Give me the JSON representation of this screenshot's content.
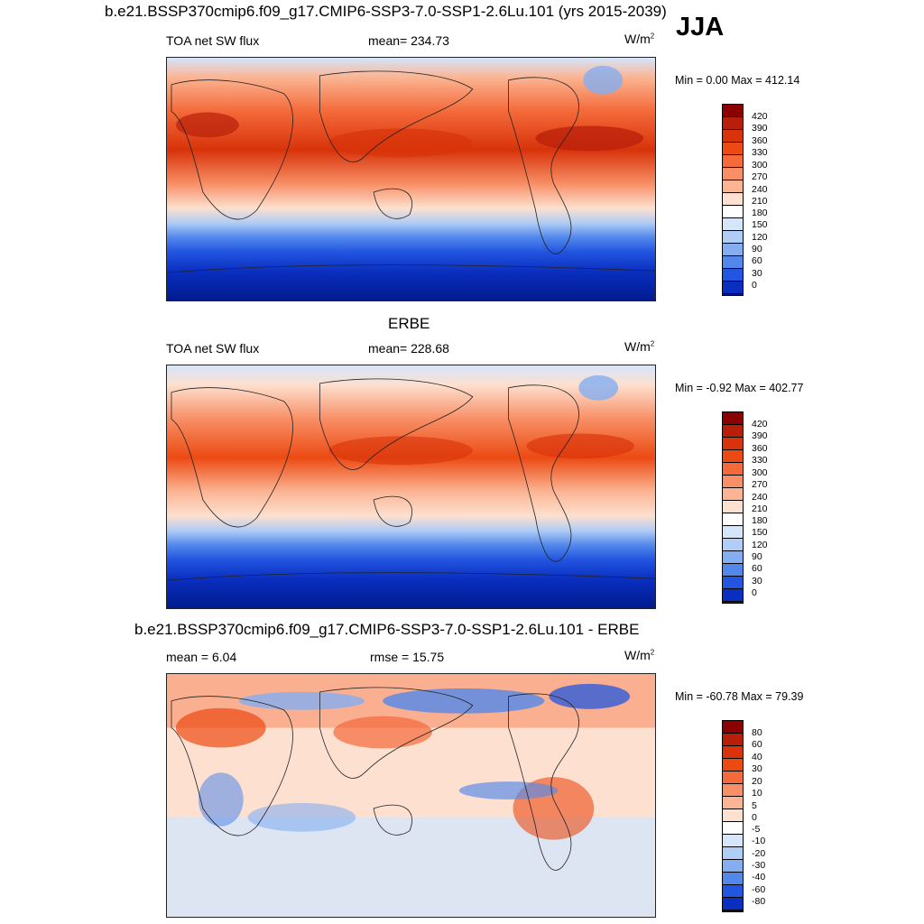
{
  "header": {
    "title": "b.e21.BSSP370cmip6.f09_g17.CMIP6-SSP3-7.0-SSP1-2.6Lu.101 (yrs 2015-2039)",
    "season": "JJA"
  },
  "panels": [
    {
      "left_label": "TOA net SW flux",
      "center_label": "mean= 234.73",
      "units": "W/m",
      "units_exp": "2",
      "minmax": "Min =   0.00 Max = 412.14",
      "colorbar_levels": [
        "420",
        "390",
        "360",
        "330",
        "300",
        "270",
        "240",
        "210",
        "180",
        "150",
        "120",
        "90",
        "60",
        "30",
        "0"
      ]
    },
    {
      "title": "ERBE",
      "left_label": "TOA net SW flux",
      "center_label": "mean= 228.68",
      "units": "W/m",
      "units_exp": "2",
      "minmax": "Min =  -0.92 Max = 402.77",
      "colorbar_levels": [
        "420",
        "390",
        "360",
        "330",
        "300",
        "270",
        "240",
        "210",
        "180",
        "150",
        "120",
        "90",
        "60",
        "30",
        "0"
      ]
    },
    {
      "title": "b.e21.BSSP370cmip6.f09_g17.CMIP6-SSP3-7.0-SSP1-2.6Lu.101 - ERBE",
      "left_label": "mean =   6.04",
      "center_label": "rmse =  15.75",
      "units": "W/m",
      "units_exp": "2",
      "minmax": "Min = -60.78 Max =  79.39",
      "colorbar_levels": [
        "80",
        "60",
        "40",
        "30",
        "20",
        "10",
        "5",
        "0",
        "-5",
        "-10",
        "-20",
        "-30",
        "-40",
        "-60",
        "-80"
      ]
    }
  ],
  "colors": {
    "abs_scale": [
      "#8b0000",
      "#b81f0a",
      "#d8330a",
      "#ec4a13",
      "#f46a3a",
      "#f88f66",
      "#fbb594",
      "#fde0cf",
      "#ffffff",
      "#d5e6fb",
      "#b0cdf5",
      "#85aef0",
      "#5388eb",
      "#2255e0",
      "#0a2fc0",
      "#001a8f",
      "#000e66"
    ],
    "diff_scale": [
      "#8b0000",
      "#b81f0a",
      "#d8330a",
      "#ec4a13",
      "#f46a3a",
      "#f88f66",
      "#fbb594",
      "#fde0cf",
      "#ffffff",
      "#d5e6fb",
      "#b0cdf5",
      "#85aef0",
      "#5388eb",
      "#2255e0",
      "#0a2fc0",
      "#000e80"
    ]
  }
}
